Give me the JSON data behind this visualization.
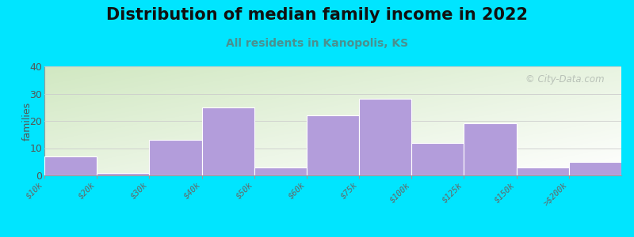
{
  "title": "Distribution of median family income in 2022",
  "subtitle": "All residents in Kanopolis, KS",
  "ylabel": "families",
  "categories": [
    "$10k",
    "$20k",
    "$30k",
    "$40k",
    "$50k",
    "$60k",
    "$75k",
    "$100k",
    "$125k",
    "$150k",
    ">$200k"
  ],
  "values": [
    7,
    1,
    13,
    25,
    3,
    22,
    28,
    12,
    19,
    3,
    5
  ],
  "bar_color": "#b39ddb",
  "bar_edge_color": "#ffffff",
  "ylim": [
    0,
    40
  ],
  "yticks": [
    0,
    10,
    20,
    30,
    40
  ],
  "background_outer": "#00e5ff",
  "bg_color_topleft": "#d4e8c2",
  "bg_color_white": "#ffffff",
  "title_fontsize": 15,
  "subtitle_fontsize": 10,
  "subtitle_color": "#4a9090",
  "watermark_text": "© City-Data.com",
  "watermark_color": "#b0b8b0"
}
